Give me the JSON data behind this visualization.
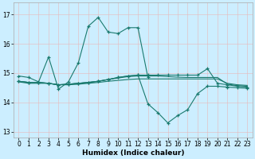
{
  "title": "",
  "xlabel": "Humidex (Indice chaleur)",
  "bg_color": "#cceeff",
  "line_color": "#1a7a6e",
  "xlim": [
    -0.5,
    23.5
  ],
  "ylim": [
    12.8,
    17.4
  ],
  "yticks": [
    13,
    14,
    15,
    16,
    17
  ],
  "xticks": [
    0,
    1,
    2,
    3,
    4,
    5,
    6,
    7,
    8,
    9,
    10,
    11,
    12,
    13,
    14,
    15,
    16,
    17,
    18,
    19,
    20,
    21,
    22,
    23
  ],
  "lines": [
    {
      "x": [
        0,
        1,
        2,
        3,
        4,
        5,
        6,
        7,
        8,
        9,
        10,
        11,
        12,
        13
      ],
      "y": [
        14.9,
        14.85,
        14.7,
        15.55,
        14.45,
        14.7,
        15.35,
        16.6,
        16.9,
        16.4,
        16.35,
        16.55,
        16.55,
        14.85
      ],
      "marker": "+"
    },
    {
      "x": [
        0,
        1,
        2,
        3,
        4,
        5,
        6,
        7,
        8,
        9,
        10,
        11,
        12,
        13,
        14,
        15,
        16,
        17,
        18,
        19,
        20,
        21,
        22,
        23
      ],
      "y": [
        14.7,
        14.65,
        14.65,
        14.65,
        14.6,
        14.6,
        14.62,
        14.65,
        14.68,
        14.72,
        14.75,
        14.78,
        14.8,
        14.8,
        14.8,
        14.8,
        14.8,
        14.8,
        14.8,
        14.8,
        14.8,
        14.65,
        14.6,
        14.58
      ],
      "marker": null
    },
    {
      "x": [
        0,
        1,
        2,
        3,
        4,
        5,
        6,
        7,
        8,
        9,
        10,
        11,
        12,
        13,
        14,
        15,
        16,
        17,
        18,
        19,
        20,
        21,
        22,
        23
      ],
      "y": [
        14.72,
        14.68,
        14.68,
        14.65,
        14.6,
        14.62,
        14.65,
        14.68,
        14.72,
        14.78,
        14.85,
        14.9,
        14.93,
        14.93,
        14.93,
        14.93,
        14.93,
        14.93,
        14.93,
        15.15,
        14.65,
        14.6,
        14.55,
        14.52
      ],
      "marker": "+"
    },
    {
      "x": [
        0,
        1,
        2,
        3,
        4,
        5,
        6,
        7,
        8,
        9,
        10,
        11,
        12,
        13,
        14,
        15,
        16,
        17,
        18,
        19,
        20,
        21,
        22,
        23
      ],
      "y": [
        14.72,
        14.68,
        14.68,
        14.65,
        14.6,
        14.62,
        14.65,
        14.68,
        14.72,
        14.78,
        14.85,
        14.9,
        14.93,
        13.95,
        13.65,
        13.3,
        13.55,
        13.75,
        14.3,
        14.55,
        14.55,
        14.52,
        14.5,
        14.48
      ],
      "marker": "+"
    },
    {
      "x": [
        0,
        1,
        2,
        3,
        4,
        5,
        6,
        7,
        8,
        9,
        10,
        11,
        12,
        13,
        14,
        15,
        16,
        17,
        18,
        19,
        20,
        21,
        22,
        23
      ],
      "y": [
        14.72,
        14.68,
        14.68,
        14.65,
        14.6,
        14.62,
        14.65,
        14.68,
        14.72,
        14.78,
        14.83,
        14.88,
        14.9,
        14.9,
        14.9,
        14.88,
        14.86,
        14.85,
        14.85,
        14.85,
        14.85,
        14.62,
        14.57,
        14.55
      ],
      "marker": null
    }
  ]
}
